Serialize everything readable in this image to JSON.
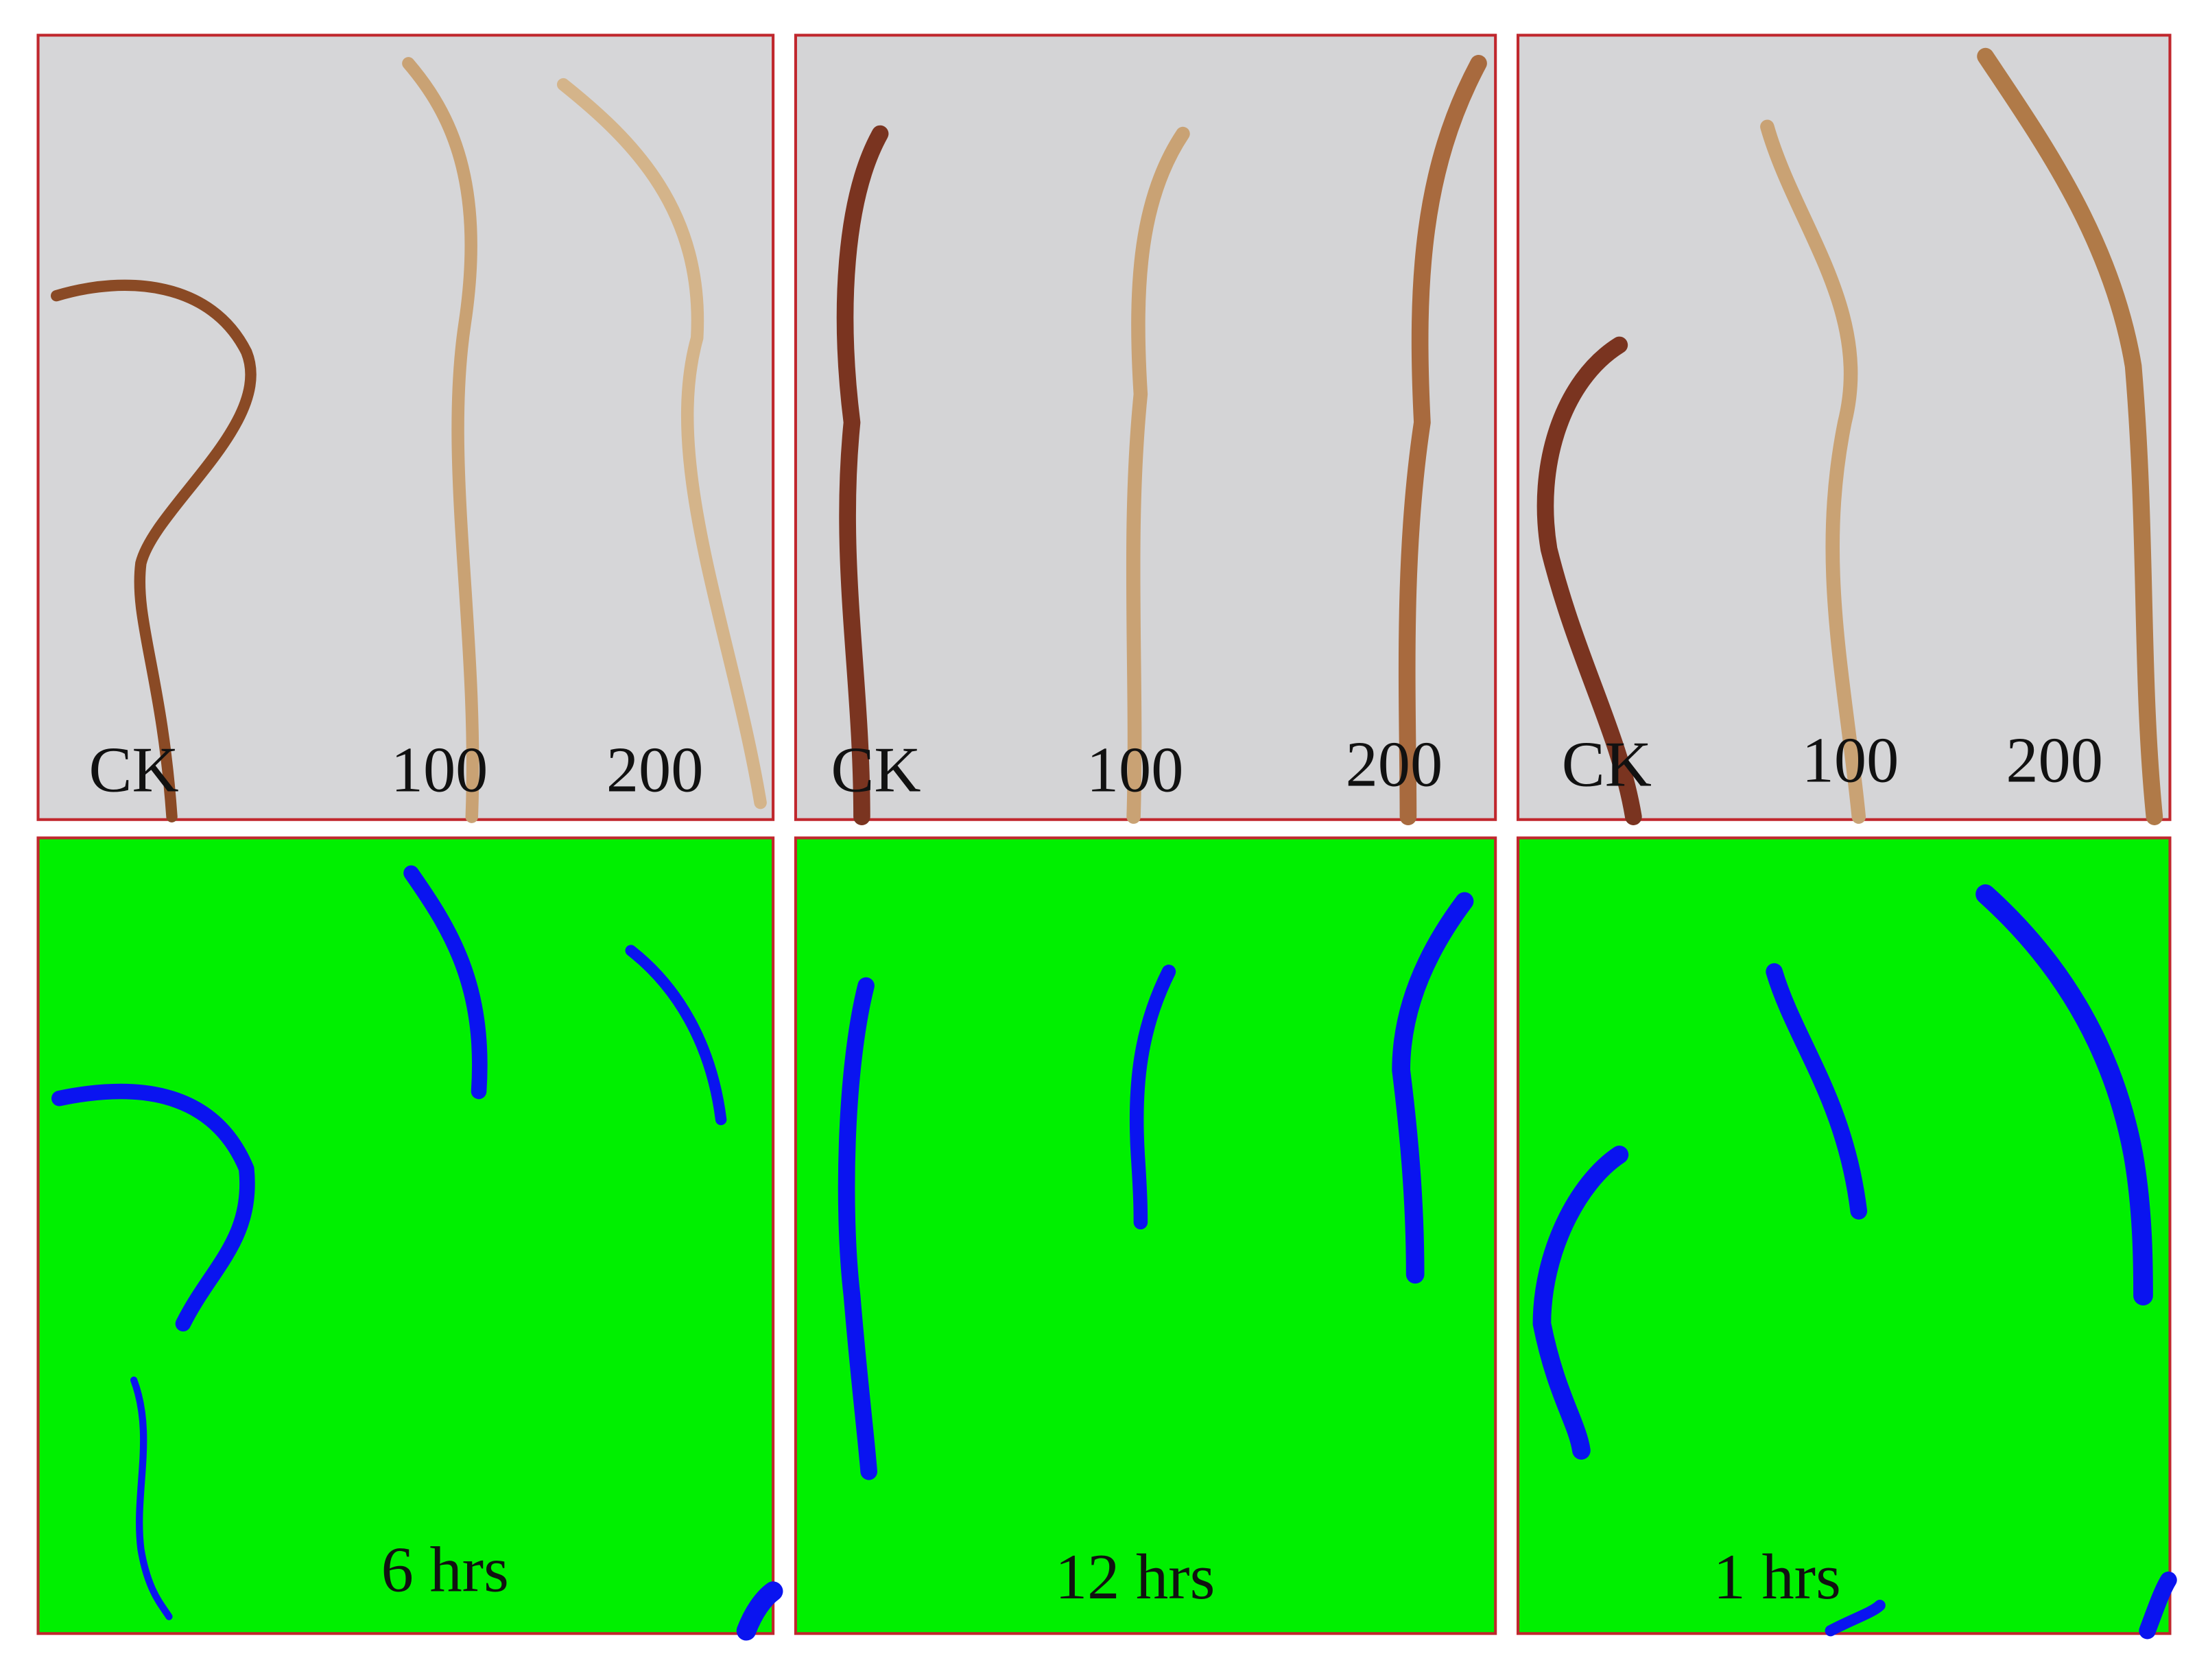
{
  "panels": [
    {
      "labels": [
        "CK",
        "100",
        "200"
      ],
      "caption": "6 hrs"
    },
    {
      "labels": [
        "CK",
        "100",
        "200"
      ],
      "caption": "12 hrs"
    },
    {
      "labels": [
        "CK",
        "100",
        "200"
      ],
      "caption": "1 hrs"
    }
  ]
}
